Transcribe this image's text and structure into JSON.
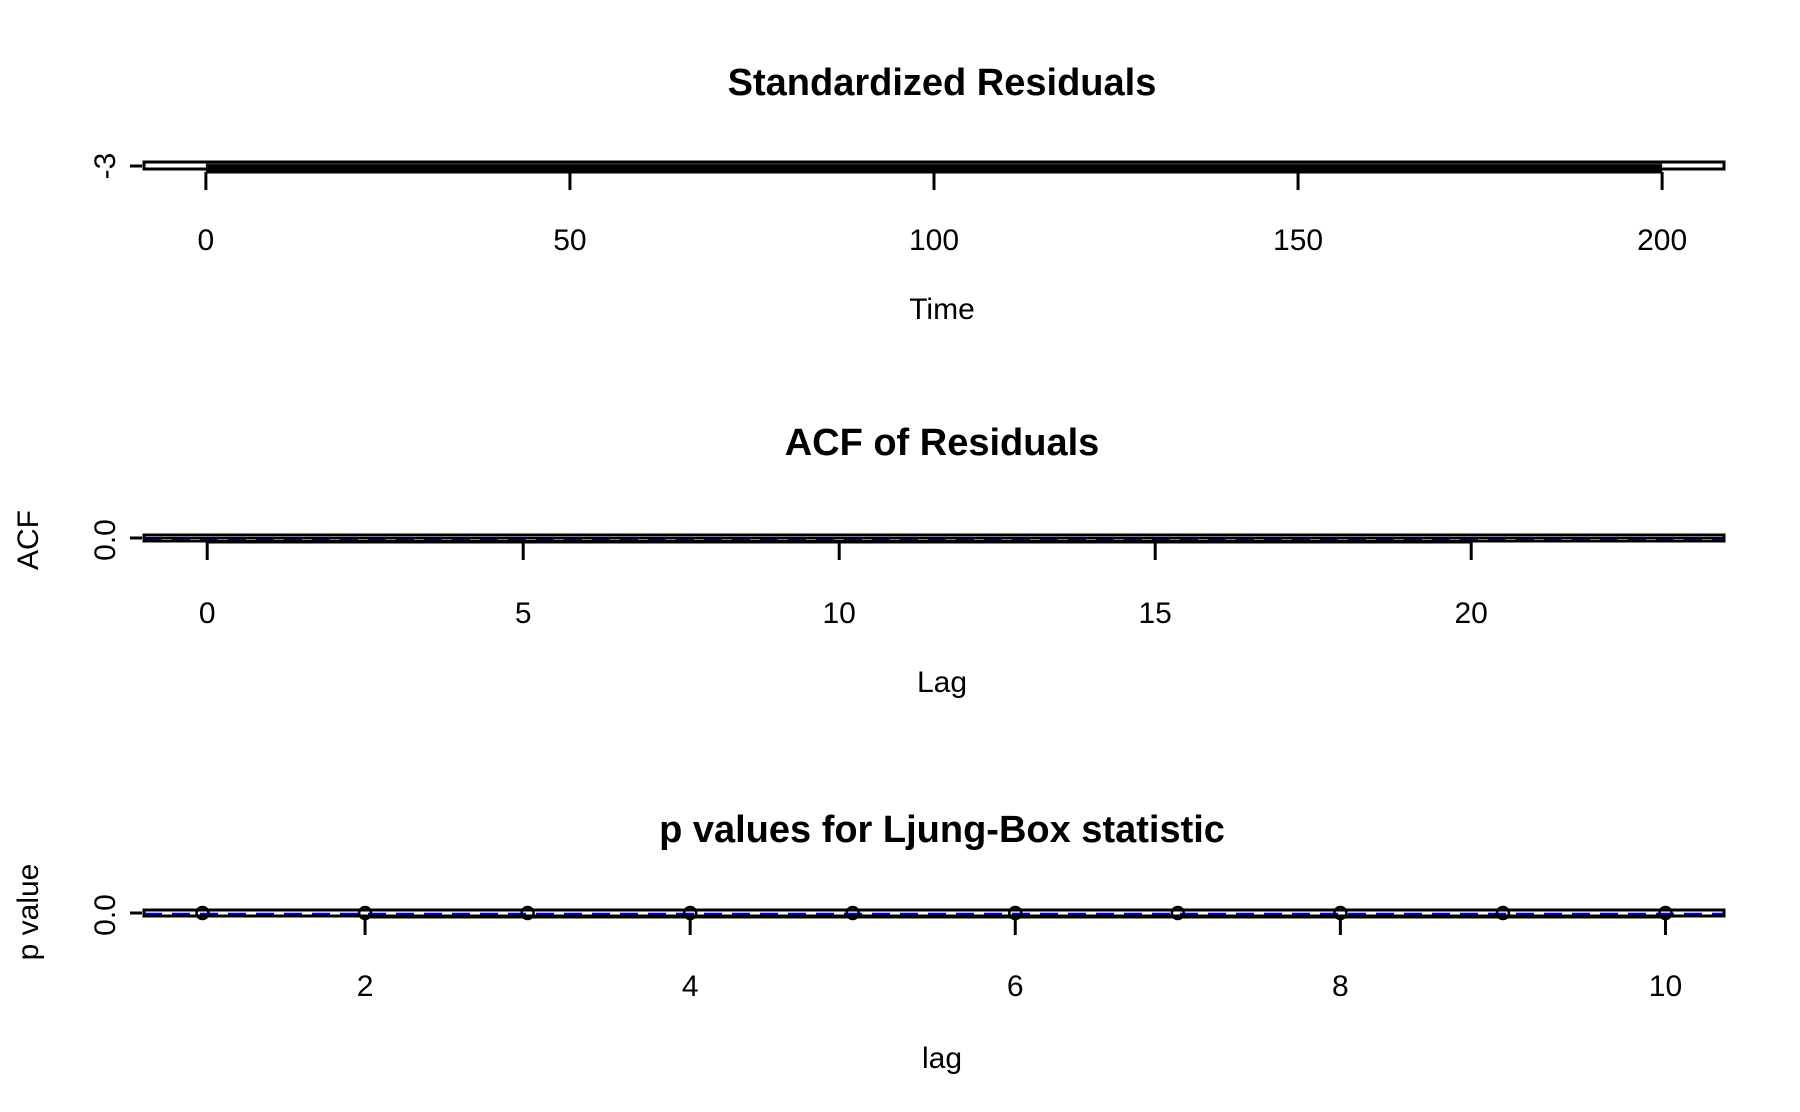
{
  "chart_data": [
    {
      "type": "line",
      "title": "Standardized Residuals",
      "xlabel": "Time",
      "ylabel": "",
      "xlim": [
        -8.5,
        208.5
      ],
      "x_ticks": [
        0,
        50,
        100,
        150,
        200
      ],
      "y_ticks": [
        -3
      ],
      "series": [
        {
          "x": [
            0,
            200
          ],
          "y": [
            -3,
            -3
          ]
        }
      ]
    },
    {
      "type": "bar",
      "title": "ACF of Residuals",
      "xlabel": "Lag",
      "ylabel": "ACF",
      "xlim": [
        -1,
        24
      ],
      "x_ticks": [
        0,
        5,
        10,
        15,
        20
      ],
      "y_ticks": [
        "0.0"
      ],
      "series": [
        {
          "x": [
            0,
            23
          ],
          "y": [
            0,
            0
          ]
        }
      ],
      "confidence_band_color": "#0000ff"
    },
    {
      "type": "scatter",
      "title": "p values for Ljung-Box statistic",
      "xlabel": "lag",
      "ylabel": "p value",
      "xlim": [
        0.64,
        10.36
      ],
      "x_ticks": [
        2,
        4,
        6,
        8,
        10
      ],
      "y_ticks": [
        "0.0"
      ],
      "series": [
        {
          "x": [
            1,
            2,
            3,
            4,
            5,
            6,
            7,
            8,
            9,
            10
          ],
          "y": [
            0,
            0,
            0,
            0,
            0,
            0,
            0,
            0,
            0,
            0
          ]
        }
      ],
      "reference_line_color": "#0000ff"
    }
  ]
}
